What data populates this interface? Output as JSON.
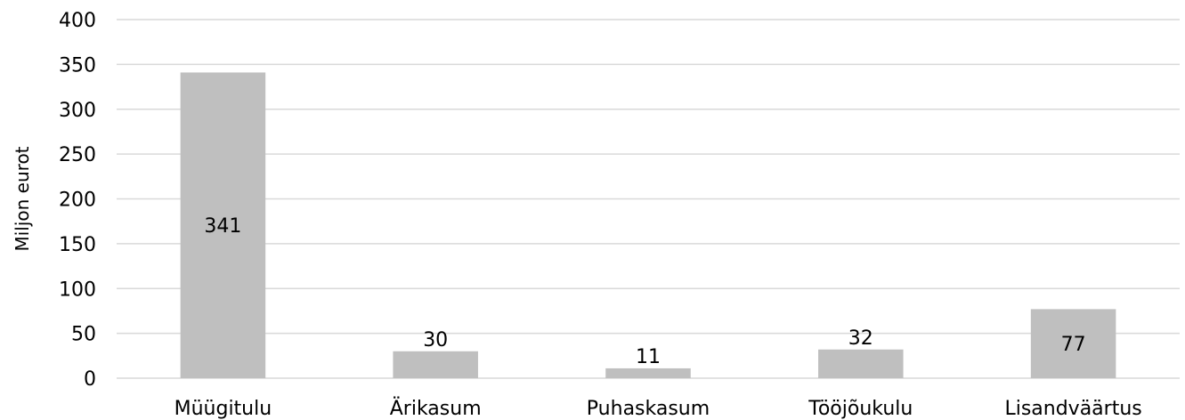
{
  "chart_data": {
    "type": "bar",
    "title": "",
    "xlabel": "",
    "ylabel": "Miljon eurot",
    "categories": [
      "Müügitulu",
      "Ärikasum",
      "Puhaskasum",
      "Tööjõukulu",
      "Lisandväärtus"
    ],
    "values": [
      341,
      30,
      11,
      32,
      77
    ],
    "data_labels": [
      "341",
      "30",
      "11",
      "32",
      "77"
    ],
    "ylim": [
      0,
      400
    ],
    "yticks": [
      0,
      50,
      100,
      150,
      200,
      250,
      300,
      350,
      400
    ],
    "grid": true,
    "legend": "none",
    "bar_color": "#bfbfbf",
    "grid_color": "#d9d9d9"
  }
}
